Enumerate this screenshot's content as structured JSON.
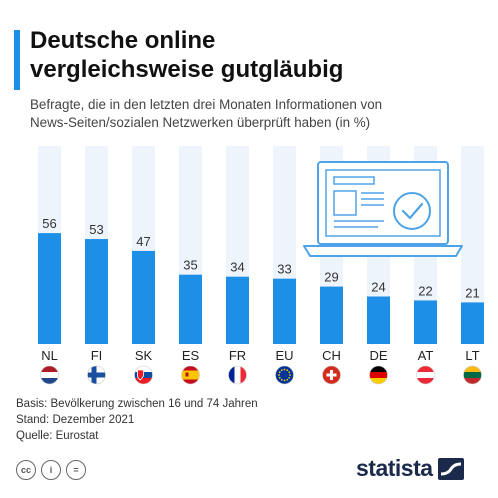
{
  "header": {
    "title_line1": "Deutsche online",
    "title_line2": "vergleichsweise gutgläubig",
    "subtitle_line1": "Befragte, die in den letzten drei Monaten Informationen von",
    "subtitle_line2": "News-Seiten/sozialen Netzwerken überprüft haben (in %)"
  },
  "colors": {
    "accent": "#1e8fe6",
    "bar": "#1e8fe6",
    "bar_background": "#eef4fb",
    "illustration": "#4ea3e8"
  },
  "chart_data": {
    "type": "bar",
    "categories": [
      "NL",
      "FI",
      "SK",
      "ES",
      "FR",
      "EU",
      "CH",
      "DE",
      "AT",
      "LT"
    ],
    "values": [
      56,
      53,
      47,
      35,
      34,
      33,
      29,
      24,
      22,
      21
    ],
    "title": "Deutsche online vergleichsweise gutgläubig",
    "subtitle": "Befragte, die in den letzten drei Monaten Informationen von News-Seiten/sozialen Netzwerken überprüft haben (in %)",
    "ylim": [
      0,
      100
    ],
    "grid": false,
    "legend": "none",
    "flags": [
      "flag-nl-icon",
      "flag-fi-icon",
      "flag-sk-icon",
      "flag-es-icon",
      "flag-fr-icon",
      "flag-eu-icon",
      "flag-ch-icon",
      "flag-de-icon",
      "flag-at-icon",
      "flag-lt-icon"
    ]
  },
  "notes": {
    "basis": "Basis: Bevölkerung zwischen 16 und 74 Jahren",
    "stand": "Stand: Dezember 2021",
    "quelle": "Quelle: Eurostat"
  },
  "footer": {
    "cc_icons": [
      "cc-icon",
      "by-icon",
      "nd-icon"
    ],
    "cc_label": "cc",
    "by_label": "i",
    "nd_label": "=",
    "logo_text": "statista"
  }
}
